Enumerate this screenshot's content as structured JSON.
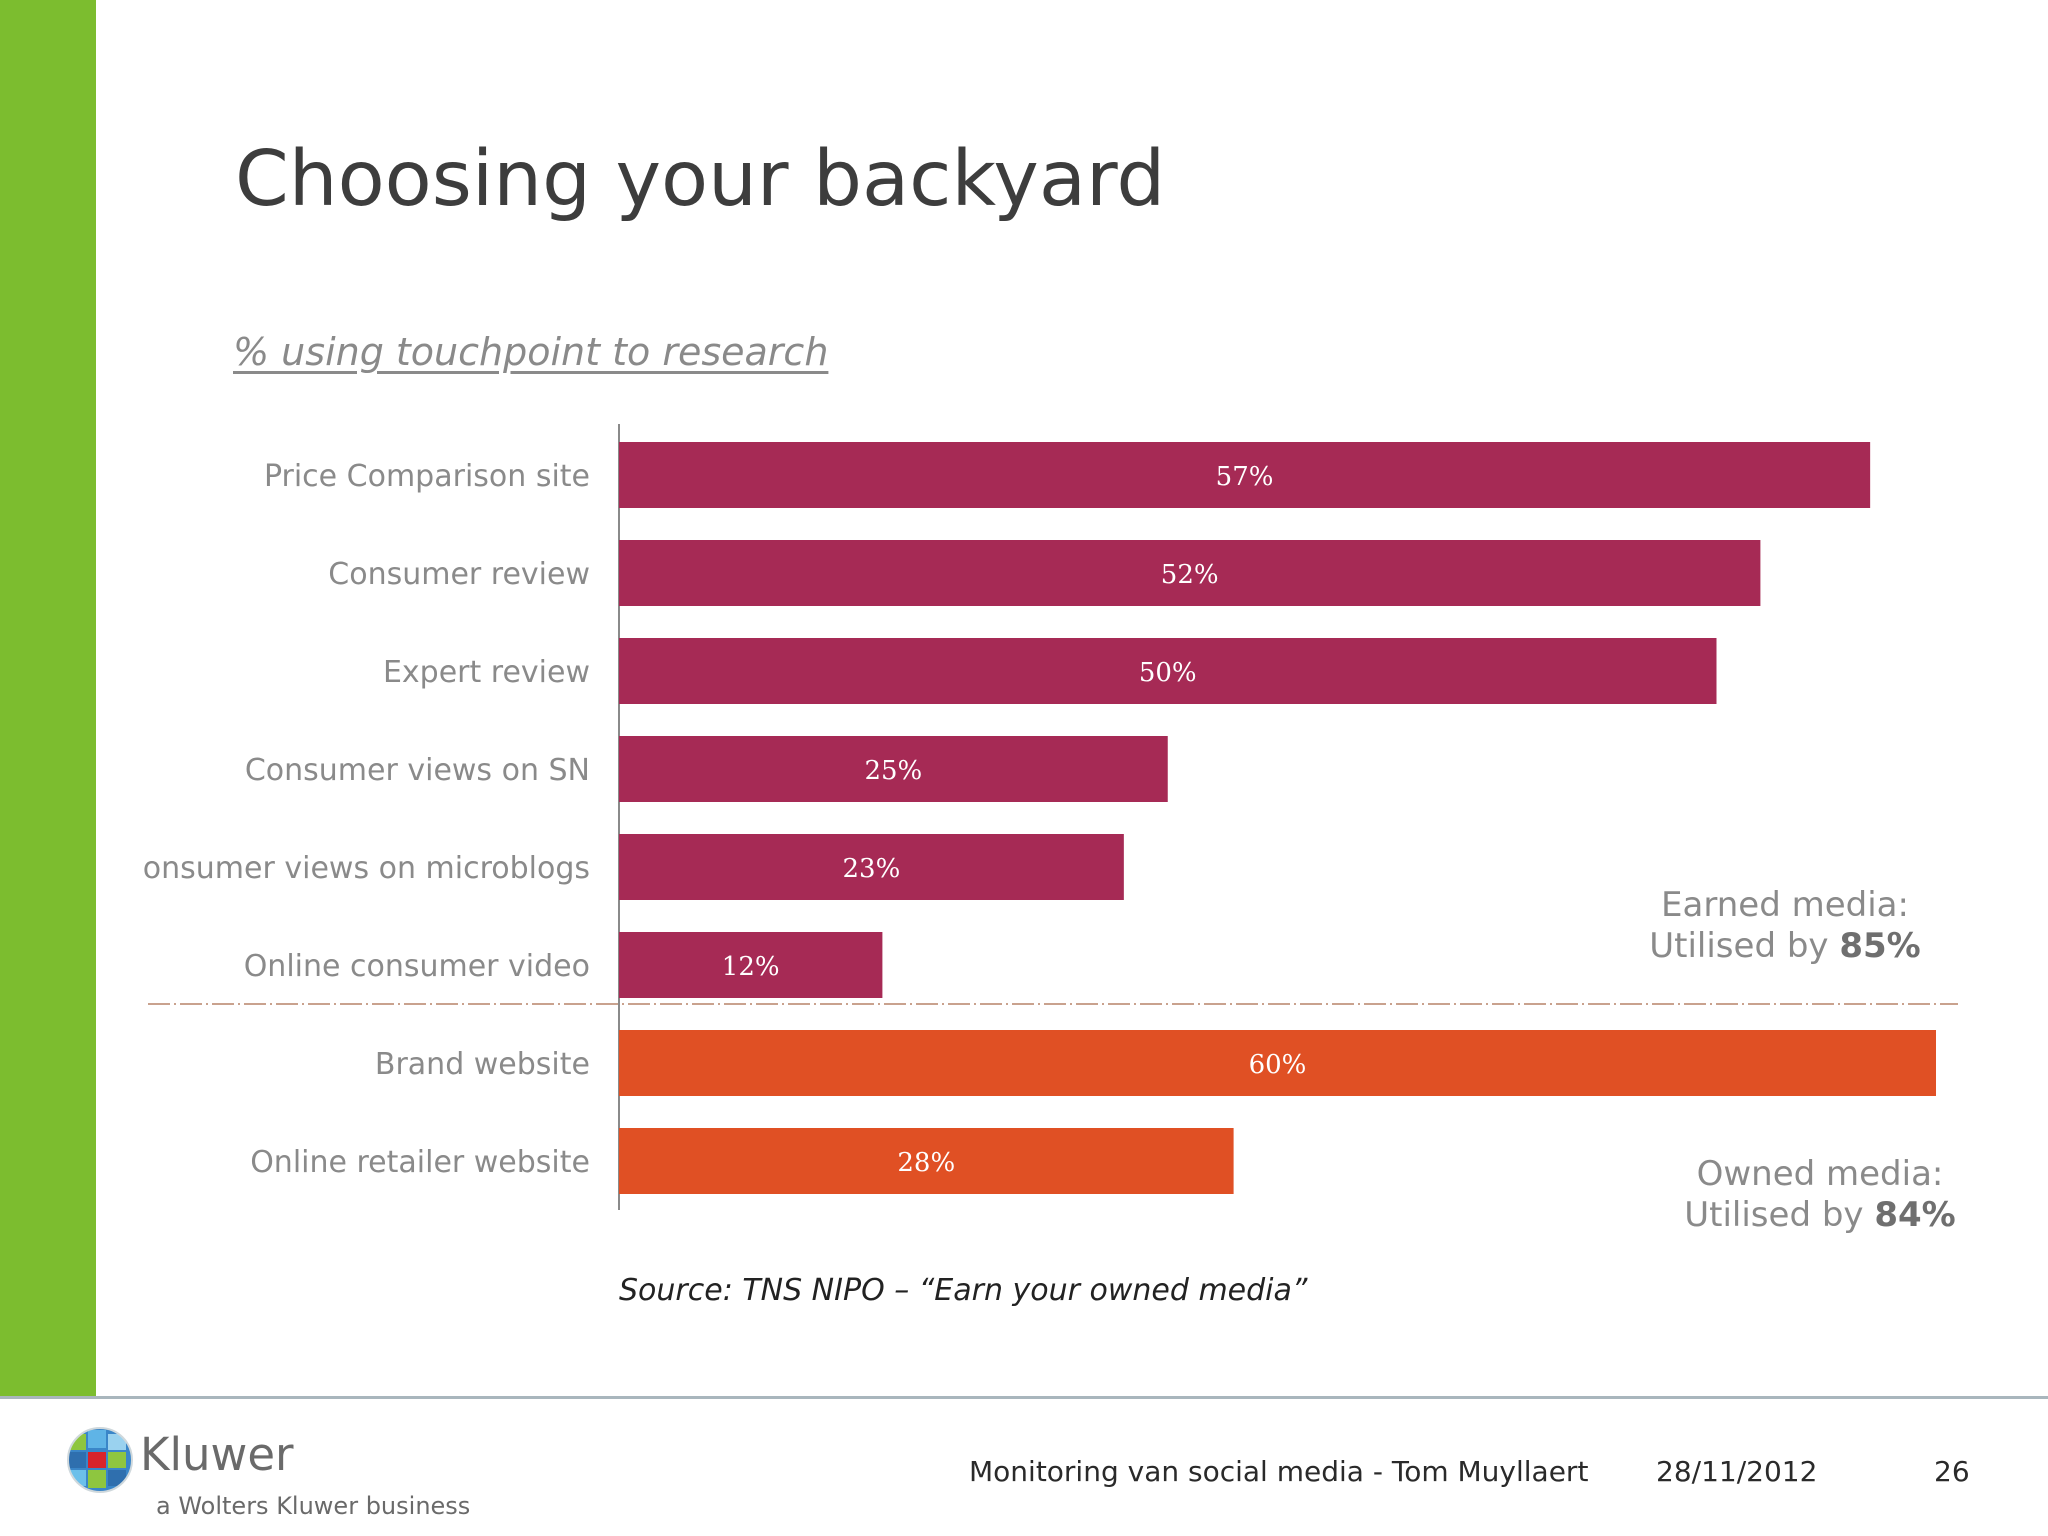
{
  "slide": {
    "title": "Choosing your backyard",
    "subtitle": "% using touchpoint to research",
    "source": "Source: TNS NIPO – “Earn your owned media”"
  },
  "annotations": {
    "earned_line1": "Earned media:",
    "earned_line2_prefix": "Utilised by ",
    "earned_value": "85%",
    "owned_line1": "Owned media:",
    "owned_line2_prefix": "Utilised by ",
    "owned_value": "84%"
  },
  "footer": {
    "logo_word": "Kluwer",
    "logo_tagline": "a Wolters Kluwer business",
    "presentation": "Monitoring van social media - Tom Muyllaert",
    "date": "28/11/2012",
    "page_number": "26"
  },
  "colors": {
    "earned": "#a62a55",
    "owned": "#e05024",
    "accent_green": "#7cbd2f"
  },
  "chart_data": {
    "type": "bar",
    "orientation": "horizontal",
    "title": "% using touchpoint to research",
    "categories": [
      "Price Comparison site",
      "Consumer review",
      "Expert review",
      "Consumer views on SN",
      "onsumer views on microblogs",
      "Online consumer video",
      "Brand website",
      "Online retailer website"
    ],
    "values": [
      57,
      52,
      50,
      25,
      23,
      12,
      60,
      28
    ],
    "value_labels": [
      "57%",
      "52%",
      "50%",
      "25%",
      "23%",
      "12%",
      "60%",
      "28%"
    ],
    "groups": [
      "earned",
      "earned",
      "earned",
      "earned",
      "earned",
      "earned",
      "owned",
      "owned"
    ],
    "xlim": [
      0,
      60
    ],
    "grid": false,
    "legend": "none"
  }
}
